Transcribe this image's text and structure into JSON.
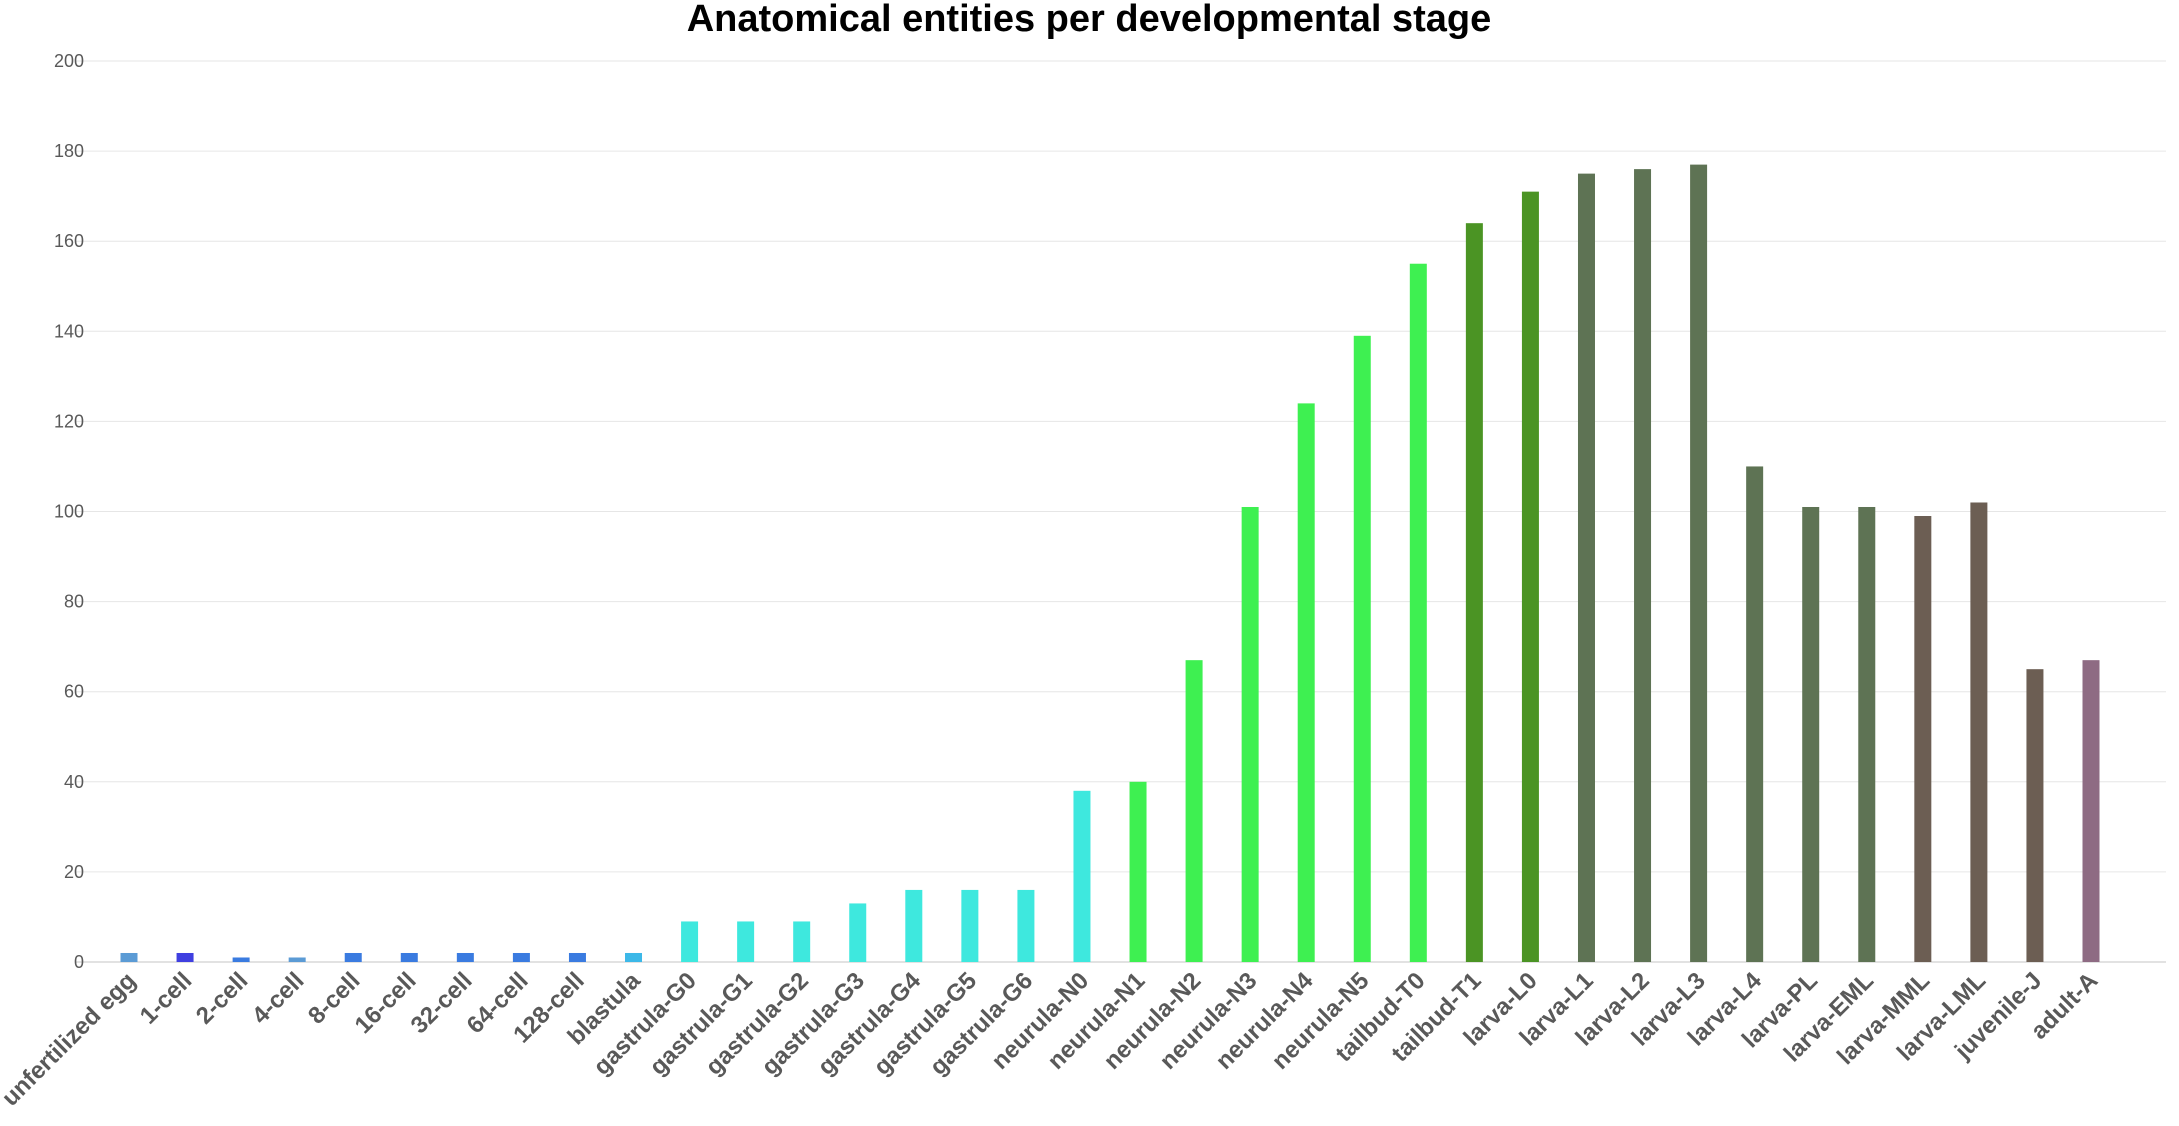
{
  "chart_data": {
    "type": "bar",
    "title": "Anatomical entities per developmental stage",
    "xlabel": "",
    "ylabel": "",
    "ylim": [
      0,
      200
    ],
    "yticks": [
      0,
      20,
      40,
      60,
      80,
      100,
      120,
      140,
      160,
      180,
      200
    ],
    "grid": true,
    "legend": "none",
    "categories": [
      "unfertilized egg",
      "1-cell",
      "2-cell",
      "4-cell",
      "8-cell",
      "16-cell",
      "32-cell",
      "64-cell",
      "128-cell",
      "blastula",
      "gastrula-G0",
      "gastrula-G1",
      "gastrula-G2",
      "gastrula-G3",
      "gastrula-G4",
      "gastrula-G5",
      "gastrula-G6",
      "neurula-N0",
      "neurula-N1",
      "neurula-N2",
      "neurula-N3",
      "neurula-N4",
      "neurula-N5",
      "tailbud-T0",
      "tailbud-T1",
      "larva-L0",
      "larva-L1",
      "larva-L2",
      "larva-L3",
      "larva-L4",
      "larva-PL",
      "larva-EML",
      "larva-MML",
      "larva-LML",
      "juvenile-J",
      "adult-A"
    ],
    "values": [
      2,
      2,
      1,
      1,
      2,
      2,
      2,
      2,
      2,
      2,
      9,
      9,
      9,
      13,
      16,
      16,
      16,
      38,
      40,
      67,
      101,
      124,
      139,
      155,
      164,
      171,
      175,
      176,
      177,
      110,
      101,
      101,
      99,
      102,
      65,
      67
    ],
    "colors": [
      "#5b9bd5",
      "#3f3fe0",
      "#3a7be0",
      "#5b9bd5",
      "#3a7be0",
      "#3a7be0",
      "#3a7be0",
      "#3a7be0",
      "#3a7be0",
      "#3cb8e8",
      "#3ee8de",
      "#3ee8de",
      "#3ee8de",
      "#3ee8de",
      "#3ee8de",
      "#3ee8de",
      "#3ee8de",
      "#3ee8de",
      "#3ef051",
      "#3ef051",
      "#3ef051",
      "#3ef051",
      "#3ef051",
      "#3ef051",
      "#4b9424",
      "#4b9424",
      "#5e7354",
      "#5e7354",
      "#5e7354",
      "#5e7354",
      "#5e7354",
      "#5e7354",
      "#6c5e53",
      "#6c5e53",
      "#6c5e53",
      "#8e6b83"
    ]
  }
}
